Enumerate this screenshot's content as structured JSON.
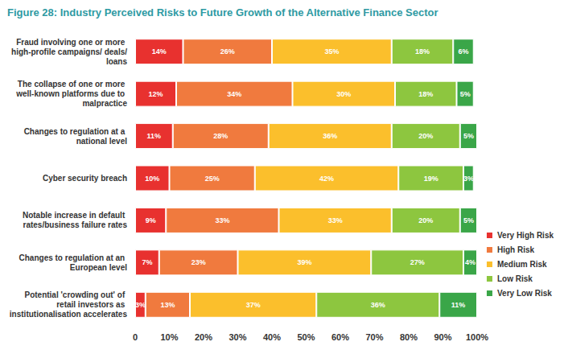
{
  "chart_data": {
    "type": "bar",
    "title": "Figure 28: Industry Perceived Risks to Future Growth of the Alternative Finance Sector",
    "orientation": "horizontal",
    "stacked": true,
    "data_labels": true,
    "grid": false,
    "legend": "bottom right",
    "categories": [
      "Fraud involving one or more high-profile campaigns/ deals/loans",
      "The collapse of one or more well-known platforms due to malpractice",
      "Changes to regulation at a national level",
      "Cyber security breach",
      "Notable increase in default rates/business failure rates",
      "Changes to regulation at an European level",
      "Potential 'crowding out' of retail investors as institutionalisation accelerates"
    ],
    "series": [
      {
        "name": "Very High Risk",
        "color": "#e8312f",
        "values": [
          14,
          12,
          11,
          10,
          9,
          7,
          3
        ],
        "value_labels": [
          "14%",
          "12%",
          "11%",
          "10%",
          "9%",
          "7%",
          "3%"
        ]
      },
      {
        "name": "High Risk",
        "color": "#f07a3e",
        "values": [
          26,
          34,
          28,
          25,
          33,
          23,
          13
        ],
        "value_labels": [
          "26%",
          "34%",
          "28%",
          "25%",
          "33%",
          "23%",
          "13%"
        ]
      },
      {
        "name": "Medium Risk",
        "color": "#fbbf2c",
        "values": [
          35,
          30,
          36,
          42,
          33,
          39,
          37
        ],
        "value_labels": [
          "35%",
          "30%",
          "36%",
          "42%",
          "33%",
          "39%",
          "37%"
        ]
      },
      {
        "name": "Low Risk",
        "color": "#8dc63f",
        "values": [
          18,
          18,
          20,
          19,
          20,
          27,
          36
        ],
        "value_labels": [
          "18%",
          "18%",
          "20%",
          "19%",
          "20%",
          "27%",
          "36%"
        ]
      },
      {
        "name": "Very Low Risk",
        "color": "#3aa648",
        "values": [
          6,
          5,
          5,
          3,
          5,
          4,
          11
        ],
        "value_labels": [
          "6%",
          "5%",
          "5%",
          "3%",
          "5%",
          "4%",
          "11%"
        ]
      }
    ],
    "xlim": [
      0,
      100
    ],
    "xticks": [
      0,
      {
        "value": 10,
        "label": "10%"
      },
      {
        "value": 20,
        "label": "20%"
      },
      {
        "value": 30,
        "label": "30%"
      },
      {
        "value": 40,
        "label": "40%"
      },
      {
        "value": 50,
        "label": "50%"
      },
      {
        "value": 60,
        "label": "60%"
      },
      {
        "value": 70,
        "label": "70%"
      },
      {
        "value": 80,
        "label": "80%"
      },
      {
        "value": 90,
        "label": "90%"
      },
      {
        "value": 100,
        "label": "100%"
      }
    ]
  }
}
